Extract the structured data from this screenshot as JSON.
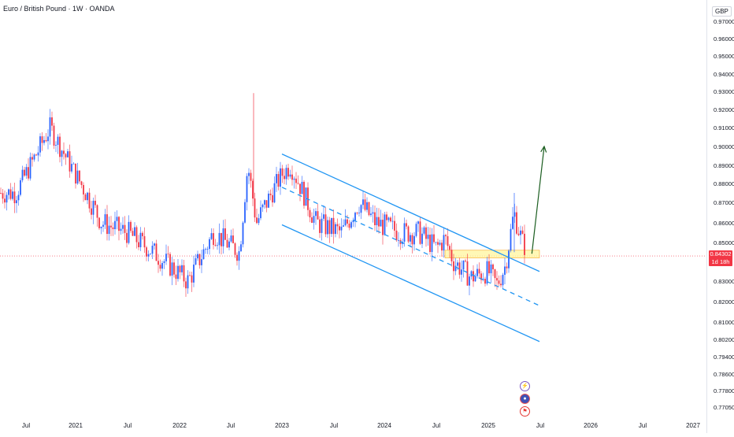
{
  "header": {
    "title": "Euro / British Pound · 1W · OANDA",
    "currency": "GBP"
  },
  "price_tag": {
    "price": "0.84302",
    "countdown": "1d 18h"
  },
  "event_icons": [
    "lightning-icon",
    "globe-icon",
    "flag-icon"
  ],
  "colors": {
    "up": "#2962ff",
    "down": "#f23645",
    "channel": "#2196f3",
    "arrow": "#1b5e20",
    "zone": "#fff59d",
    "price_line": "#f23645"
  },
  "chart_data": {
    "type": "candlestick",
    "symbol": "EURGBP",
    "timeframe": "1W",
    "y_axis": {
      "unit": "GBP",
      "ticks": [
        "0.97000",
        "0.96000",
        "0.95000",
        "0.94000",
        "0.93000",
        "0.92000",
        "0.91000",
        "0.90000",
        "0.89000",
        "0.88000",
        "0.87000",
        "0.86000",
        "0.85000",
        "0.83000",
        "0.82000",
        "0.81000",
        "0.80200",
        "0.79400",
        "0.78600",
        "0.77800",
        "0.77050"
      ]
    },
    "x_axis": {
      "ticks": [
        "Jul",
        "2021",
        "Jul",
        "2022",
        "Jul",
        "2023",
        "Jul",
        "2024",
        "Jul",
        "2025",
        "Jul",
        "2026",
        "Jul",
        "2027"
      ]
    },
    "current_price": 0.84302,
    "price_anchors": [
      {
        "date": "2020-06",
        "price": 0.875
      },
      {
        "date": "2020-10",
        "price": 0.91
      },
      {
        "date": "2021-01",
        "price": 0.885
      },
      {
        "date": "2021-04",
        "price": 0.86
      },
      {
        "date": "2021-07",
        "price": 0.855
      },
      {
        "date": "2021-10",
        "price": 0.845
      },
      {
        "date": "2022-02",
        "price": 0.83
      },
      {
        "date": "2022-05",
        "price": 0.855
      },
      {
        "date": "2022-08",
        "price": 0.845
      },
      {
        "date": "2022-09",
        "price": 0.89
      },
      {
        "date": "2022-10",
        "price": 0.86
      },
      {
        "date": "2023-01",
        "price": 0.885
      },
      {
        "date": "2023-02",
        "price": 0.89
      },
      {
        "date": "2023-05",
        "price": 0.86
      },
      {
        "date": "2023-08",
        "price": 0.855
      },
      {
        "date": "2023-10",
        "price": 0.87
      },
      {
        "date": "2023-12",
        "price": 0.86
      },
      {
        "date": "2024-03",
        "price": 0.855
      },
      {
        "date": "2024-05",
        "price": 0.855
      },
      {
        "date": "2024-07",
        "price": 0.847
      },
      {
        "date": "2024-08",
        "price": 0.852
      },
      {
        "date": "2024-09",
        "price": 0.84
      },
      {
        "date": "2024-11",
        "price": 0.832
      },
      {
        "date": "2025-01",
        "price": 0.835
      },
      {
        "date": "2025-02",
        "price": 0.828
      },
      {
        "date": "2025-03",
        "price": 0.838
      },
      {
        "date": "2025-04",
        "price": 0.865
      },
      {
        "date": "2025-05",
        "price": 0.85
      },
      {
        "date": "2025-06",
        "price": 0.843
      }
    ],
    "channel": {
      "upper": [
        {
          "date": "2023-01",
          "price": 0.896
        },
        {
          "date": "2025-07",
          "price": 0.835
        }
      ],
      "middle_dashed": [
        {
          "date": "2023-01",
          "price": 0.878
        },
        {
          "date": "2025-07",
          "price": 0.818
        }
      ],
      "lower": [
        {
          "date": "2023-01",
          "price": 0.859
        },
        {
          "date": "2025-07",
          "price": 0.801
        }
      ]
    },
    "support_zone": {
      "from": "2024-08",
      "to": "2025-07",
      "low": 0.842,
      "high": 0.846
    },
    "projection_arrow": {
      "from": {
        "date": "2025-05",
        "price": 0.845
      },
      "to": {
        "date": "2025-07",
        "price": 0.9
      }
    }
  }
}
